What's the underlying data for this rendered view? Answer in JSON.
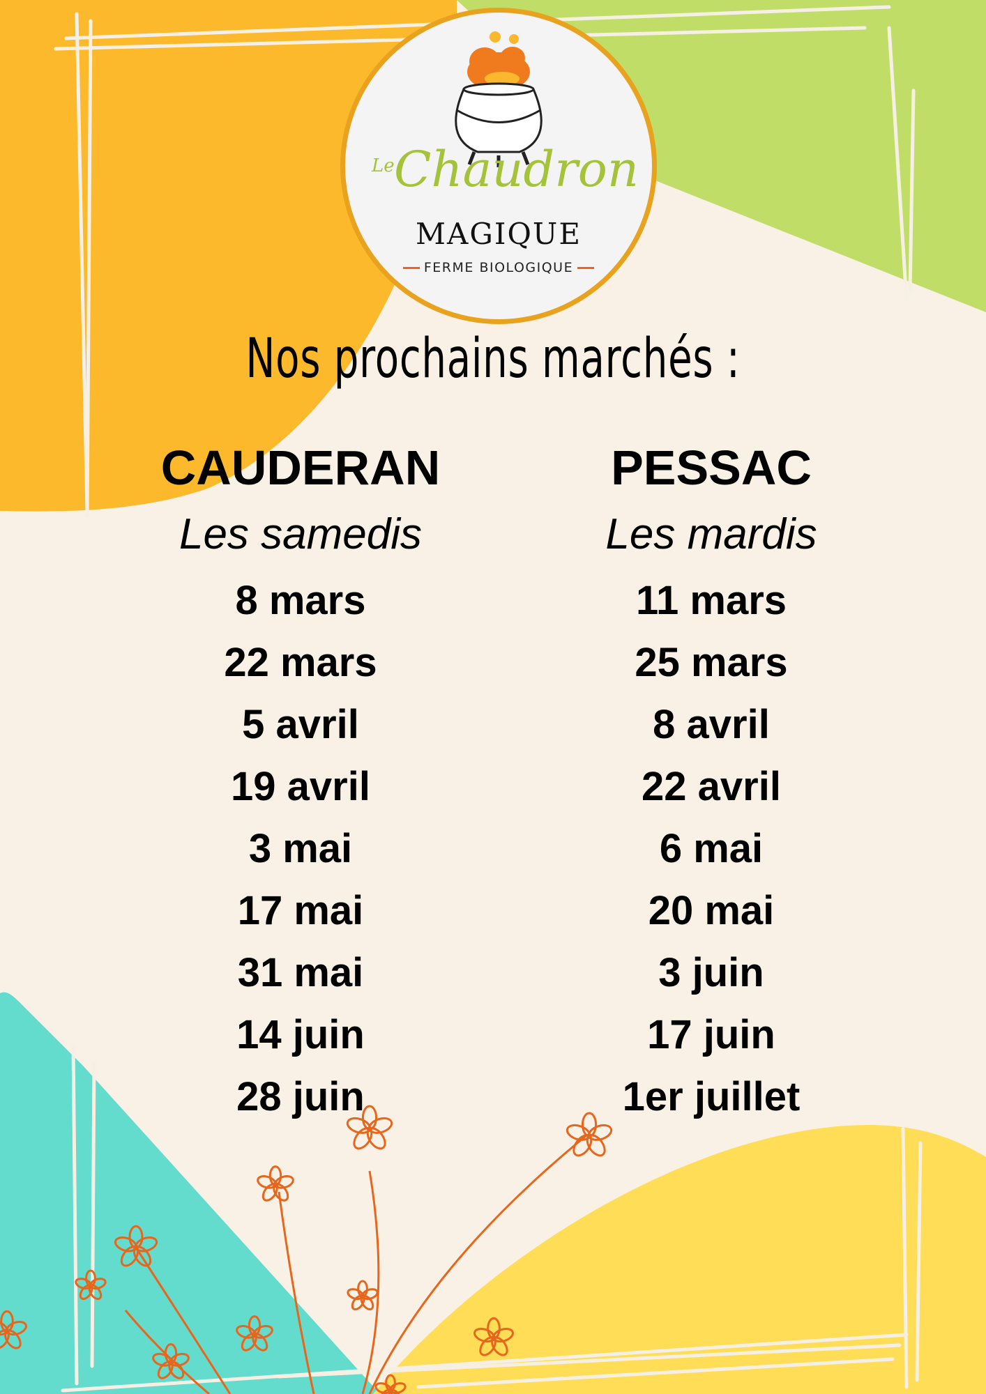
{
  "logo": {
    "le": "Le",
    "chaudron": "Chaudron",
    "magique": "MAGIQUE",
    "ferme": "FERME BIOLOGIQUE"
  },
  "title": "Nos prochains marchés :",
  "markets": [
    {
      "name": "CAUDERAN",
      "days": "Les samedis",
      "dates": [
        "8 mars",
        "22 mars",
        "5 avril",
        "19 avril",
        "3 mai",
        "17 mai",
        "31 mai",
        "14 juin",
        "28 juin"
      ]
    },
    {
      "name": "PESSAC",
      "days": "Les mardis",
      "dates": [
        "11 mars",
        "25 mars",
        "8 avril",
        "22 avril",
        "6 mai",
        "20 mai",
        "3 juin",
        "17 juin",
        "1er juillet"
      ]
    }
  ],
  "colors": {
    "orange": "#fdb92c",
    "green": "#c0dd68",
    "teal": "#63dbcd",
    "yellow": "#ffdd57",
    "cream": "#f9f1e5",
    "flower": "#e8661c"
  }
}
